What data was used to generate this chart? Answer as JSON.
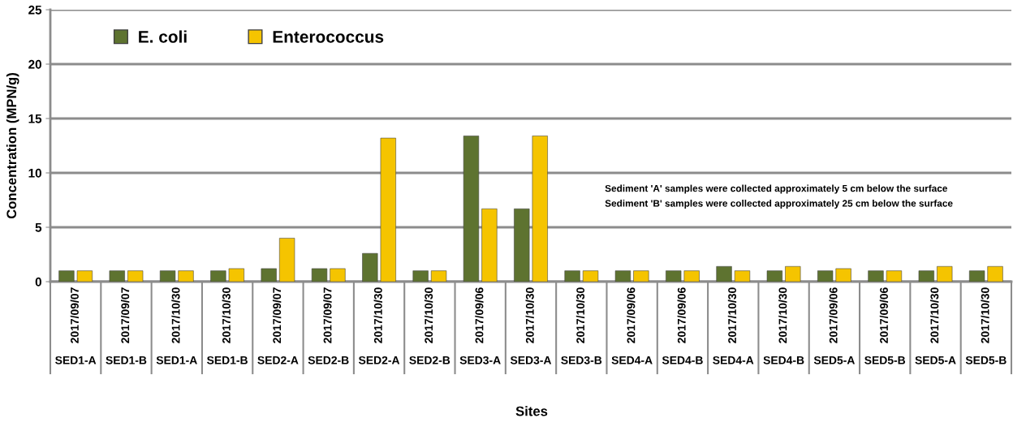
{
  "chart_data": {
    "type": "bar",
    "xlabel": "Sites",
    "ylabel": "Concentration (MPN/g)",
    "categories": [
      "2017/09/07\nSED1-A",
      "2017/09/07\nSED1-B",
      "2017/10/30\nSED1-A",
      "2017/10/30\nSED1-B",
      "2017/09/07\nSED2-A",
      "2017/09/07\nSED2-B",
      "2017/10/30\nSED2-A",
      "2017/10/30\nSED2-B",
      "2017/09/06\nSED3-A",
      "2017/10/30\nSED3-A",
      "2017/10/30\nSED3-B",
      "2017/09/06\nSED4-A",
      "2017/09/06\nSED4-B",
      "2017/10/30\nSED4-A",
      "2017/10/30\nSED4-B",
      "2017/09/06\nSED5-A",
      "2017/09/06\nSED5-B",
      "2017/10/30\nSED5-A",
      "2017/10/30\nSED5-B"
    ],
    "series": [
      {
        "name": "E. coli",
        "color": "#5e7330",
        "values": [
          1,
          1,
          1,
          1,
          1.2,
          1.2,
          2.6,
          1,
          13.4,
          6.7,
          1,
          1,
          1,
          1.4,
          1,
          1,
          1,
          1,
          1
        ]
      },
      {
        "name": "Enterococcus",
        "color": "#f5c400",
        "values": [
          1,
          1,
          1,
          1.2,
          4,
          1.2,
          13.2,
          1,
          6.7,
          13.4,
          1,
          1,
          1,
          1,
          1.4,
          1.2,
          1,
          1.4,
          1.4
        ]
      }
    ],
    "ylim": [
      0,
      25
    ],
    "yticks": [
      0,
      5,
      10,
      15,
      20,
      25
    ],
    "grid": "y",
    "legend": "top left",
    "annotations": [
      "Sediment 'A' samples were collected approximately 5 cm below the surface",
      "Sediment 'B' samples were collected approximately 25 cm below the surface"
    ]
  }
}
